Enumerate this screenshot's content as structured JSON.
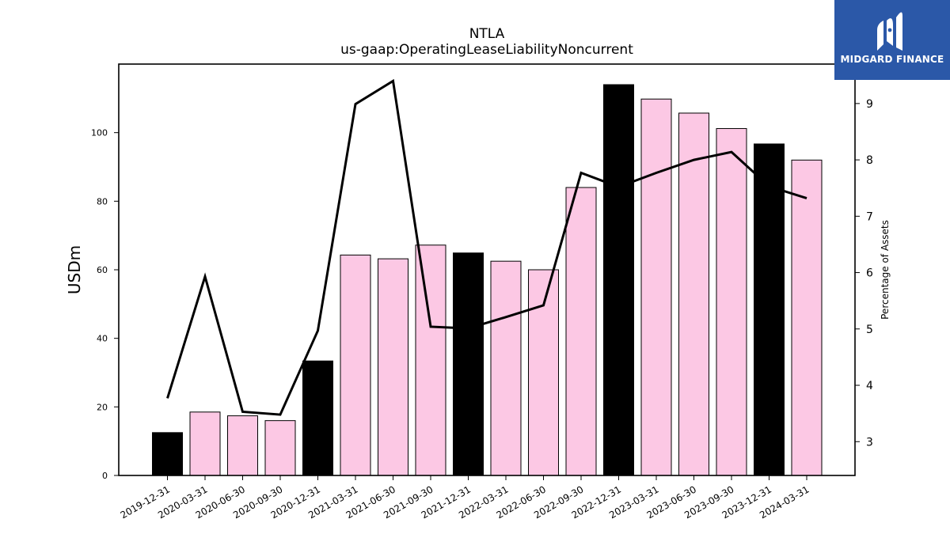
{
  "chart_data": {
    "type": "bar",
    "title": "NTLA",
    "subtitle": "us-gaap:OperatingLeaseLiabilityNoncurrent",
    "ylabel": "USDm",
    "y2label": "Percentage of Assets",
    "ylim": [
      0,
      120
    ],
    "yticks": [
      0,
      20,
      40,
      60,
      80,
      100
    ],
    "y2lim": [
      2.4,
      9.7
    ],
    "y2ticks": [
      3,
      4,
      5,
      6,
      7,
      8,
      9
    ],
    "categories": [
      "2019-12-31",
      "2020-03-31",
      "2020-06-30",
      "2020-09-30",
      "2020-12-31",
      "2021-03-31",
      "2021-06-30",
      "2021-09-30",
      "2021-12-31",
      "2022-03-31",
      "2022-06-30",
      "2022-09-30",
      "2022-12-31",
      "2023-03-31",
      "2023-06-30",
      "2023-09-30",
      "2023-12-31",
      "2024-03-31"
    ],
    "series": [
      {
        "values": [
          12.5,
          18.5,
          17.4,
          16.0,
          33.4,
          64.3,
          63.2,
          67.2,
          64.9,
          62.5,
          60.0,
          84.0,
          114.0,
          109.8,
          105.7,
          101.2,
          96.7,
          92.0
        ],
        "year_end": [
          true,
          false,
          false,
          false,
          true,
          false,
          false,
          false,
          true,
          false,
          false,
          false,
          true,
          false,
          false,
          false,
          true,
          false
        ],
        "colors": {
          "year_end": "#000000",
          "quarter": "#fcc8e4"
        }
      },
      {
        "axis": "right",
        "type": "line",
        "values": [
          3.77,
          5.93,
          3.53,
          3.48,
          4.97,
          8.99,
          9.4,
          5.04,
          5.01,
          5.21,
          5.42,
          7.77,
          7.52,
          7.77,
          8.0,
          8.14,
          7.53,
          7.32
        ],
        "color": "#000000"
      }
    ]
  },
  "logo": {
    "text": "MIDGARD FINANCE",
    "bg": "#2b58a8"
  }
}
